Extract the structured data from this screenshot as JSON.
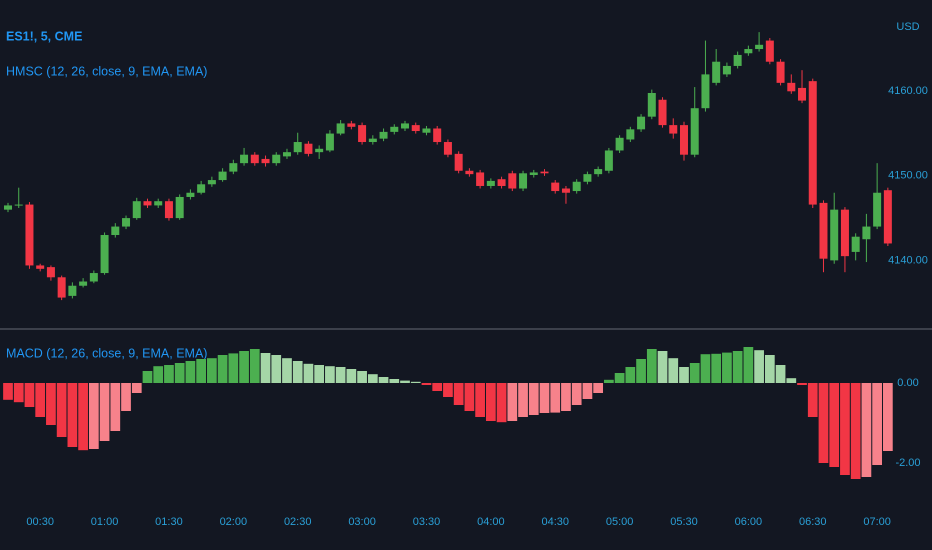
{
  "chart_data": [
    {
      "type": "candlestick",
      "symbol": "ES1!, 5, CME",
      "indicator_label": "HMSC (12, 26, close, 9, EMA, EMA)",
      "currency": "USD",
      "categories": [
        null,
        null,
        null,
        "00:30",
        null,
        null,
        null,
        null,
        null,
        "01:00",
        null,
        null,
        null,
        null,
        null,
        "01:30",
        null,
        null,
        null,
        null,
        null,
        "02:00",
        null,
        null,
        null,
        null,
        null,
        "02:30",
        null,
        null,
        null,
        null,
        null,
        "03:00",
        null,
        null,
        null,
        null,
        null,
        "03:30",
        null,
        null,
        null,
        null,
        null,
        "04:00",
        null,
        null,
        null,
        null,
        null,
        "04:30",
        null,
        null,
        null,
        null,
        null,
        "05:00",
        null,
        null,
        null,
        null,
        null,
        "05:30",
        null,
        null,
        null,
        null,
        null,
        "06:00",
        null,
        null,
        null,
        null,
        null,
        "06:30",
        null,
        null,
        null,
        null,
        null,
        "07:00",
        null
      ],
      "open": [
        4146.0,
        4146.5,
        4146.6,
        4139.4,
        4139.2,
        4138.0,
        4135.8,
        4137.0,
        4137.5,
        4138.5,
        4143.0,
        4144.0,
        4145.0,
        4147.0,
        4146.5,
        4147.0,
        4145.0,
        4147.5,
        4148.0,
        4149.0,
        4149.5,
        4150.5,
        4151.5,
        4152.5,
        4152.0,
        4151.5,
        4152.3,
        4152.8,
        4153.8,
        4152.8,
        4153.0,
        4155.0,
        4156.2,
        4156.0,
        4154.0,
        4154.4,
        4155.2,
        4155.6,
        4156.0,
        4155.1,
        4155.6,
        4154.0,
        4152.6,
        4150.6,
        4150.4,
        4148.8,
        4149.6,
        4150.3,
        4148.5,
        4150.1,
        4150.5,
        4149.2,
        4148.5,
        4148.2,
        4149.3,
        4150.2,
        4150.6,
        4153.0,
        4154.3,
        4155.5,
        4157.0,
        4159.0,
        4156.0,
        4156.0,
        4152.5,
        4158.0,
        4161.0,
        4162.0,
        4163.0,
        4164.5,
        4165.0,
        4166.0,
        4163.5,
        4161.0,
        4160.4,
        4161.2,
        4146.8,
        4140.0,
        4146.0,
        4141.0,
        4142.5,
        4144.0,
        4148.3
      ],
      "high": [
        4146.8,
        4148.6,
        4146.9,
        4139.6,
        4139.4,
        4138.2,
        4137.4,
        4137.9,
        4138.8,
        4143.3,
        4144.4,
        4145.3,
        4147.4,
        4147.3,
        4147.3,
        4147.3,
        4147.8,
        4148.4,
        4149.4,
        4149.9,
        4150.9,
        4151.9,
        4153.3,
        4152.8,
        4152.4,
        4152.8,
        4153.2,
        4155.1,
        4154.1,
        4153.6,
        4155.4,
        4156.6,
        4156.5,
        4156.3,
        4154.8,
        4155.6,
        4156.1,
        4156.5,
        4156.3,
        4155.9,
        4155.9,
        4154.3,
        4152.9,
        4150.9,
        4150.7,
        4149.7,
        4149.9,
        4150.6,
        4150.6,
        4150.7,
        4150.8,
        4149.5,
        4148.8,
        4149.6,
        4150.5,
        4151.1,
        4153.3,
        4154.8,
        4155.8,
        4157.3,
        4160.2,
        4159.3,
        4156.8,
        4156.4,
        4160.5,
        4166.0,
        4165.0,
        4163.4,
        4164.7,
        4165.4,
        4167.0,
        4166.3,
        4163.8,
        4162.0,
        4162.5,
        4161.5,
        4147.1,
        4148.0,
        4146.3,
        4143.2,
        4145.5,
        4151.5,
        4148.6
      ],
      "low": [
        4145.7,
        4146.2,
        4139.0,
        4138.7,
        4137.6,
        4135.3,
        4135.5,
        4136.8,
        4137.3,
        4138.3,
        4142.7,
        4143.7,
        4144.8,
        4146.2,
        4146.2,
        4144.7,
        4144.8,
        4147.2,
        4147.8,
        4148.7,
        4149.3,
        4150.2,
        4151.2,
        4151.2,
        4151.1,
        4151.2,
        4152.0,
        4152.5,
        4152.3,
        4152.0,
        4152.8,
        4154.8,
        4155.5,
        4153.7,
        4153.7,
        4154.1,
        4154.9,
        4155.3,
        4155.0,
        4154.8,
        4153.7,
        4152.2,
        4150.3,
        4149.9,
        4148.5,
        4148.5,
        4148.5,
        4148.2,
        4148.2,
        4149.8,
        4150.0,
        4147.9,
        4146.7,
        4147.9,
        4149.0,
        4149.9,
        4150.3,
        4152.7,
        4154.0,
        4155.2,
        4156.7,
        4155.7,
        4154.4,
        4151.8,
        4152.2,
        4157.6,
        4160.7,
        4161.7,
        4162.7,
        4164.2,
        4164.7,
        4163.2,
        4160.7,
        4159.7,
        4158.6,
        4146.2,
        4138.6,
        4139.6,
        4138.6,
        4140.0,
        4139.8,
        4143.7,
        4141.7
      ],
      "close": [
        4146.5,
        4146.6,
        4139.4,
        4139.0,
        4138.0,
        4135.6,
        4137.0,
        4137.5,
        4138.5,
        4143.0,
        4144.0,
        4145.0,
        4147.0,
        4146.5,
        4147.0,
        4145.0,
        4147.5,
        4148.0,
        4149.0,
        4149.5,
        4150.5,
        4151.5,
        4152.5,
        4151.5,
        4151.5,
        4152.5,
        4152.8,
        4154.0,
        4152.6,
        4153.2,
        4155.0,
        4156.2,
        4155.8,
        4154.0,
        4154.4,
        4155.2,
        4155.8,
        4156.2,
        4155.3,
        4155.6,
        4154.0,
        4152.5,
        4150.6,
        4150.2,
        4148.8,
        4149.4,
        4148.8,
        4148.5,
        4150.3,
        4150.4,
        4150.3,
        4148.2,
        4148.0,
        4149.3,
        4150.2,
        4150.8,
        4153.0,
        4154.5,
        4155.5,
        4157.0,
        4159.8,
        4156.0,
        4155.0,
        4152.5,
        4158.0,
        4162.0,
        4163.5,
        4163.0,
        4164.3,
        4165.0,
        4165.5,
        4163.5,
        4161.0,
        4160.0,
        4158.9,
        4146.6,
        4140.2,
        4146.0,
        4140.5,
        4142.8,
        4144.0,
        4148.0,
        4142.0
      ],
      "up_color": "#4caf50",
      "down_color": "#f23645",
      "ylim": [
        4132,
        4170.8
      ],
      "yticks": [
        {
          "value": 4140,
          "label": "4140.00"
        },
        {
          "value": 4150,
          "label": "4150.00"
        },
        {
          "value": 4160,
          "label": "4160.00"
        }
      ]
    },
    {
      "type": "histogram",
      "title": "MACD (12, 26, close, 9, EMA, EMA)",
      "values": [
        -0.42,
        -0.48,
        -0.6,
        -0.85,
        -1.05,
        -1.35,
        -1.6,
        -1.68,
        -1.65,
        -1.45,
        -1.2,
        -0.7,
        -0.25,
        0.3,
        0.42,
        0.45,
        0.5,
        0.55,
        0.6,
        0.62,
        0.7,
        0.74,
        0.8,
        0.85,
        0.75,
        0.7,
        0.62,
        0.55,
        0.48,
        0.45,
        0.42,
        0.4,
        0.35,
        0.3,
        0.22,
        0.15,
        0.1,
        0.06,
        0.03,
        -0.05,
        -0.2,
        -0.35,
        -0.55,
        -0.7,
        -0.85,
        -0.95,
        -0.98,
        -0.95,
        -0.85,
        -0.8,
        -0.75,
        -0.74,
        -0.7,
        -0.55,
        -0.4,
        -0.25,
        0.08,
        0.25,
        0.4,
        0.6,
        0.85,
        0.8,
        0.62,
        0.4,
        0.5,
        0.72,
        0.73,
        0.76,
        0.8,
        0.9,
        0.82,
        0.7,
        0.45,
        0.12,
        -0.05,
        -0.85,
        -2.0,
        -2.1,
        -2.3,
        -2.4,
        -2.35,
        -2.05,
        -1.7
      ],
      "palette": {
        "positive_rising": "#4caf50",
        "positive_falling": "#a5d6a7",
        "negative_falling": "#f23645",
        "negative_rising": "#f7828b"
      },
      "ylim": [
        -3.175,
        1.325
      ],
      "yticks": [
        {
          "value": 0,
          "label": "0.00"
        },
        {
          "value": -2,
          "label": "-2.00"
        }
      ]
    }
  ]
}
